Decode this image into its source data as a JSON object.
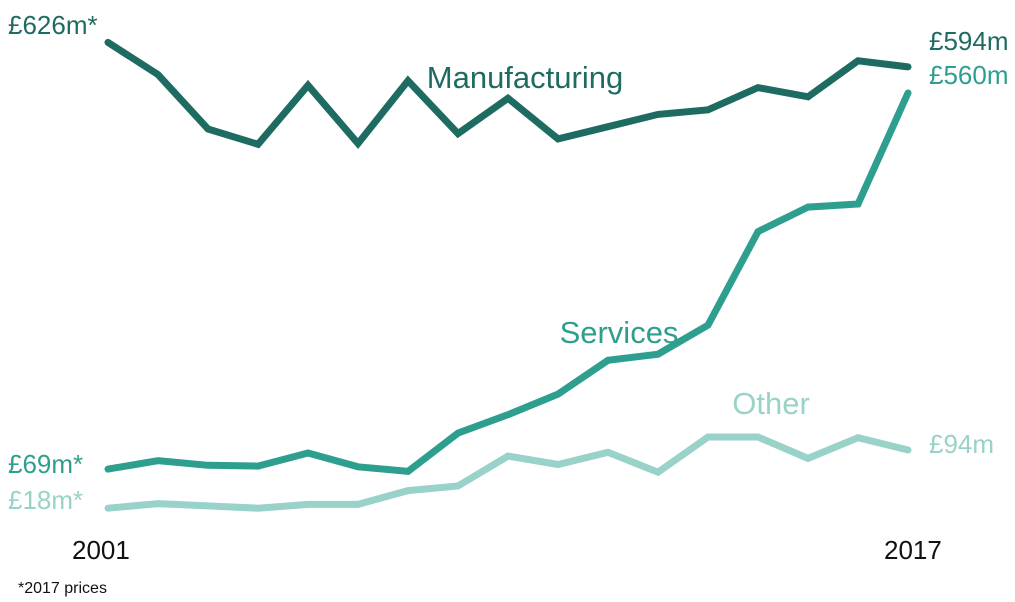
{
  "footnote": "*2017 prices",
  "chart_data": {
    "type": "line",
    "title": "",
    "xlabel": "",
    "ylabel": "",
    "x": [
      2001,
      2002,
      2003,
      2004,
      2005,
      2006,
      2007,
      2008,
      2009,
      2010,
      2011,
      2012,
      2013,
      2014,
      2015,
      2016,
      2017
    ],
    "x_tick_labels": [
      "2001",
      "2017"
    ],
    "ylim": [
      0,
      650
    ],
    "grid": false,
    "legend": "none",
    "series": [
      {
        "name": "Manufacturing",
        "color": "#1e6b62",
        "start_label": "£626m*",
        "end_label": "£594m",
        "values": [
          626,
          584,
          513,
          493,
          570,
          494,
          576,
          507,
          553,
          500,
          516,
          532,
          538,
          567,
          555,
          602,
          594
        ]
      },
      {
        "name": "Services",
        "color": "#2e9e8e",
        "start_label": "£69m*",
        "end_label": "£560m",
        "values": [
          69,
          80,
          74,
          73,
          90,
          72,
          66,
          116,
          140,
          167,
          211,
          219,
          257,
          379,
          411,
          415,
          560
        ]
      },
      {
        "name": "Other",
        "color": "#98d2c8",
        "start_label": "£18m*",
        "end_label": "£94m",
        "values": [
          18,
          24,
          21,
          18,
          23,
          23,
          41,
          47,
          86,
          75,
          91,
          65,
          111,
          111,
          83,
          110,
          94
        ]
      }
    ]
  }
}
